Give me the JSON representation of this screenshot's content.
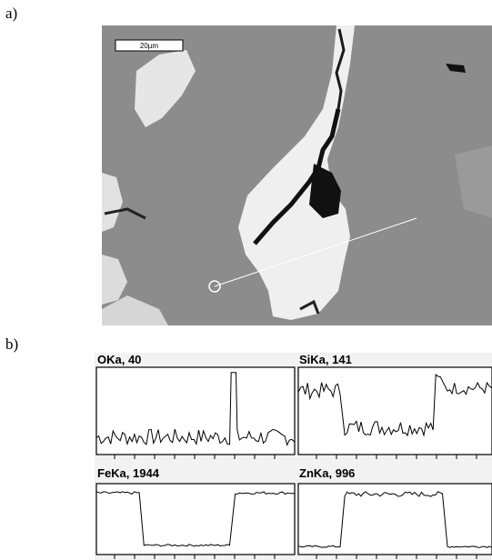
{
  "panel_a": {
    "label": "a)",
    "scale_bar": "20µm"
  },
  "panel_b": {
    "label": "b)",
    "plots": [
      {
        "title": "OKa, 40"
      },
      {
        "title": "SiKa, 141"
      },
      {
        "title": "FeKa, 1944"
      },
      {
        "title": "ZnKa, 996"
      }
    ]
  }
}
